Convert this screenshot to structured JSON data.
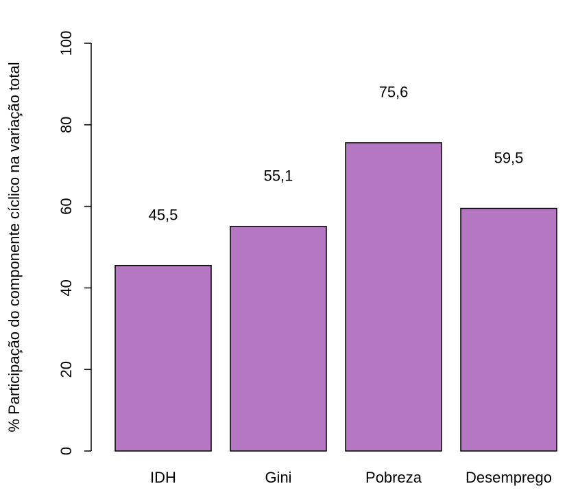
{
  "chart_data": {
    "type": "bar",
    "y_label": "% Participação do componente cíclico na variação total",
    "categories": [
      "IDH",
      "Gini",
      "Pobreza",
      "Desemprego"
    ],
    "values": [
      45.5,
      55.1,
      75.6,
      59.5
    ],
    "value_labels": [
      "45,5",
      "55,1",
      "75,6",
      "59,5"
    ],
    "color": "#b576c2",
    "ylim": [
      0,
      100
    ],
    "yticks": [
      0,
      20,
      40,
      60,
      80,
      100
    ]
  }
}
